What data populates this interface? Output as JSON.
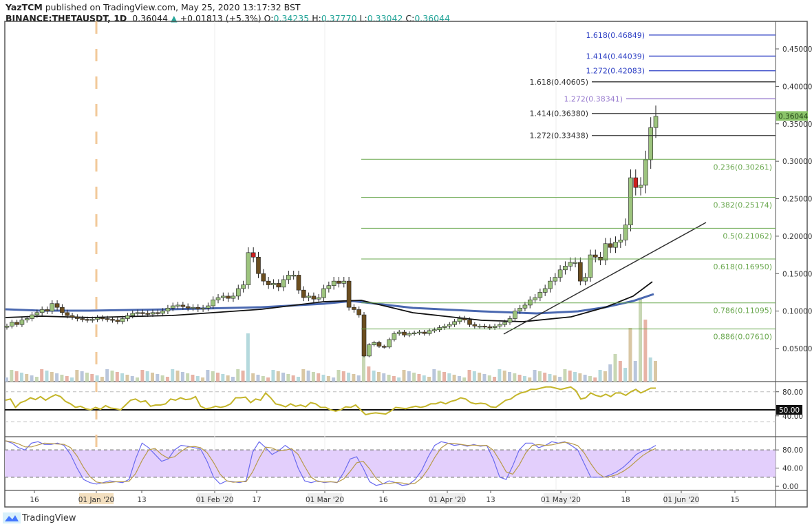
{
  "header": {
    "author": "YazTCM",
    "published_text": "published on TradingView.com, May 25, 2020 13:17:32 BST",
    "symbol": "BINANCE:THETAUSDT, 1D",
    "last": "0.36044",
    "change": "+0.01813 (+5.3%)",
    "open_label": "O:",
    "open": "0.34235",
    "high_label": "H:",
    "high": "0.37770",
    "low_label": "L:",
    "low": "0.33042",
    "close_label": "C:",
    "close": "0.36044"
  },
  "footer": {
    "brand": "TradingView"
  },
  "colors": {
    "bull": "#9dc47e",
    "bear": "#6b4e1f",
    "bear_red": "#cc1f1f",
    "fib_green": "#6aa84f",
    "fib_blue": "#2d3fc4",
    "fib_purple": "#9b7fd0",
    "fib_black": "#333333",
    "rsi": "#c4b52a",
    "stoch_k": "#6b6bef",
    "stoch_d": "#b89a4a",
    "stoch_band": "#e3cffc",
    "price_tag": "#8bc46a",
    "ma_black": "#111111",
    "ma_blue": "#4a68b0"
  },
  "chart_data": {
    "type": "candlestick",
    "title": "BINANCE:THETAUSDT, 1D",
    "price_axis": {
      "ticks": [
        "0.45000",
        "0.40000",
        "0.35000",
        "0.30000",
        "0.25000",
        "0.20000",
        "0.15000",
        "0.10000",
        "0.05000"
      ],
      "current_price_tag": "0.36044",
      "range": [
        0.0,
        0.48
      ]
    },
    "time_axis": {
      "ticks": [
        "16",
        "01 Jan '20",
        "13",
        "01 Feb '20",
        "17",
        "01 Mar '20",
        "16",
        "01 Apr '20",
        "13",
        "01 May '20",
        "18",
        "01 Jun '20",
        "15"
      ]
    },
    "fib_levels": [
      {
        "label": "1.618(0.46849)",
        "value": 0.46849,
        "color": "blue"
      },
      {
        "label": "1.414(0.44039)",
        "value": 0.44039,
        "color": "blue"
      },
      {
        "label": "1.272(0.42083)",
        "value": 0.42083,
        "color": "blue"
      },
      {
        "label": "1.618(0.40605)",
        "value": 0.40605,
        "color": "black"
      },
      {
        "label": "1.272(0.38341)",
        "value": 0.38341,
        "color": "purple"
      },
      {
        "label": "1.414(0.36380)",
        "value": 0.3638,
        "color": "black"
      },
      {
        "label": "1.272(0.33438)",
        "value": 0.33438,
        "color": "black"
      },
      {
        "label": "0.236(0.30261)",
        "value": 0.30261,
        "color": "green"
      },
      {
        "label": "0.382(0.25174)",
        "value": 0.25174,
        "color": "green"
      },
      {
        "label": "0.5(0.21062)",
        "value": 0.21062,
        "color": "green"
      },
      {
        "label": "0.618(0.16950)",
        "value": 0.1695,
        "color": "green"
      },
      {
        "label": "0.786(0.11095)",
        "value": 0.11095,
        "color": "green"
      },
      {
        "label": "0.886(0.07610)",
        "value": 0.0761,
        "color": "green"
      }
    ],
    "closes_approx": [
      0.08,
      0.085,
      0.082,
      0.088,
      0.09,
      0.095,
      0.098,
      0.102,
      0.1,
      0.11,
      0.105,
      0.098,
      0.094,
      0.092,
      0.09,
      0.089,
      0.088,
      0.089,
      0.091,
      0.09,
      0.089,
      0.088,
      0.086,
      0.09,
      0.094,
      0.097,
      0.098,
      0.097,
      0.096,
      0.098,
      0.097,
      0.1,
      0.104,
      0.107,
      0.108,
      0.106,
      0.104,
      0.105,
      0.103,
      0.104,
      0.107,
      0.115,
      0.118,
      0.12,
      0.117,
      0.12,
      0.13,
      0.135,
      0.178,
      0.172,
      0.15,
      0.14,
      0.135,
      0.137,
      0.132,
      0.142,
      0.148,
      0.148,
      0.128,
      0.118,
      0.12,
      0.116,
      0.118,
      0.13,
      0.134,
      0.14,
      0.137,
      0.14,
      0.105,
      0.102,
      0.095,
      0.04,
      0.055,
      0.058,
      0.053,
      0.052,
      0.062,
      0.07,
      0.072,
      0.068,
      0.07,
      0.071,
      0.072,
      0.07,
      0.074,
      0.075,
      0.078,
      0.08,
      0.082,
      0.086,
      0.09,
      0.088,
      0.082,
      0.08,
      0.08,
      0.079,
      0.078,
      0.08,
      0.082,
      0.085,
      0.09,
      0.1,
      0.104,
      0.108,
      0.115,
      0.118,
      0.125,
      0.13,
      0.14,
      0.145,
      0.155,
      0.16,
      0.165,
      0.165,
      0.14,
      0.145,
      0.175,
      0.172,
      0.168,
      0.19,
      0.185,
      0.192,
      0.195,
      0.215,
      0.278,
      0.265,
      0.268,
      0.302,
      0.345,
      0.36
    ],
    "moving_averages": [
      {
        "name": "MA (black)",
        "start": 0.095,
        "end": 0.138
      },
      {
        "name": "MA (blue)",
        "start": 0.102,
        "end": 0.12
      }
    ],
    "trendline": {
      "from": [
        0.063,
        "~Apr 20"
      ],
      "to": [
        0.218,
        "~Jun 05"
      ]
    },
    "rsi": {
      "levels": [
        "80.00",
        "50.00",
        "40.00"
      ],
      "highlight": "50.00"
    },
    "stoch_rsi": {
      "levels": [
        "80.00",
        "40.00",
        "0.00"
      ]
    }
  }
}
